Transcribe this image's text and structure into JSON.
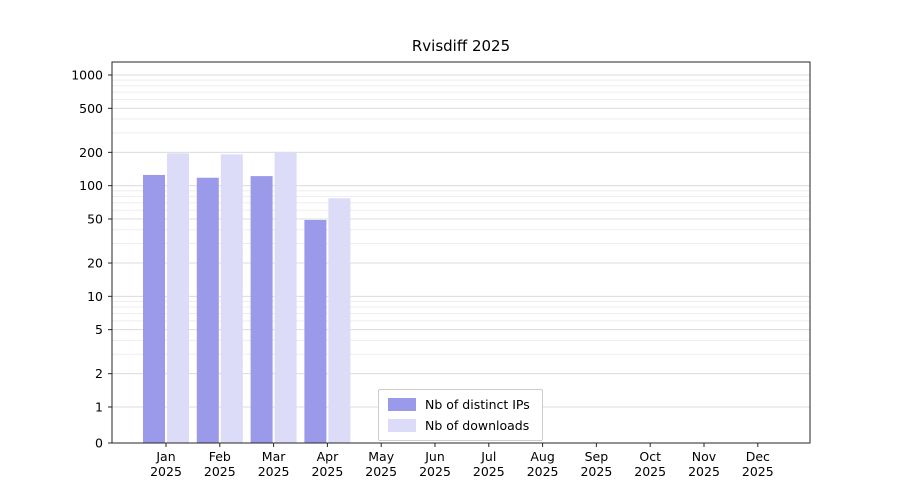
{
  "chart_data": {
    "type": "bar",
    "title": "Rvisdiff 2025",
    "categories": [
      "Jan",
      "Feb",
      "Mar",
      "Apr",
      "May",
      "Jun",
      "Jul",
      "Aug",
      "Sep",
      "Oct",
      "Nov",
      "Dec"
    ],
    "year_label": "2025",
    "series": [
      {
        "name": "Nb of distinct IPs",
        "color": "#9a99ea",
        "values": [
          125,
          118,
          122,
          49,
          0,
          0,
          0,
          0,
          0,
          0,
          0,
          0
        ]
      },
      {
        "name": "Nb of downloads",
        "color": "#dcdcf8",
        "values": [
          196,
          192,
          202,
          77,
          0,
          0,
          0,
          0,
          0,
          0,
          0,
          0
        ]
      }
    ],
    "yscale": "log-with-zero-baseline",
    "yticks": [
      0,
      1,
      2,
      5,
      10,
      20,
      50,
      100,
      200,
      500,
      1000
    ],
    "ylim": [
      0,
      1000
    ],
    "grid": "horizontal major gridlines with log minor gridlines",
    "legend_position": "inside-bottom-center",
    "colors": {
      "axis": "#262626",
      "grid_major": "#dcdcdc",
      "grid_minor": "#ededed",
      "tick_label": "#000000",
      "legend_border": "#cccccc",
      "background": "#ffffff"
    }
  }
}
